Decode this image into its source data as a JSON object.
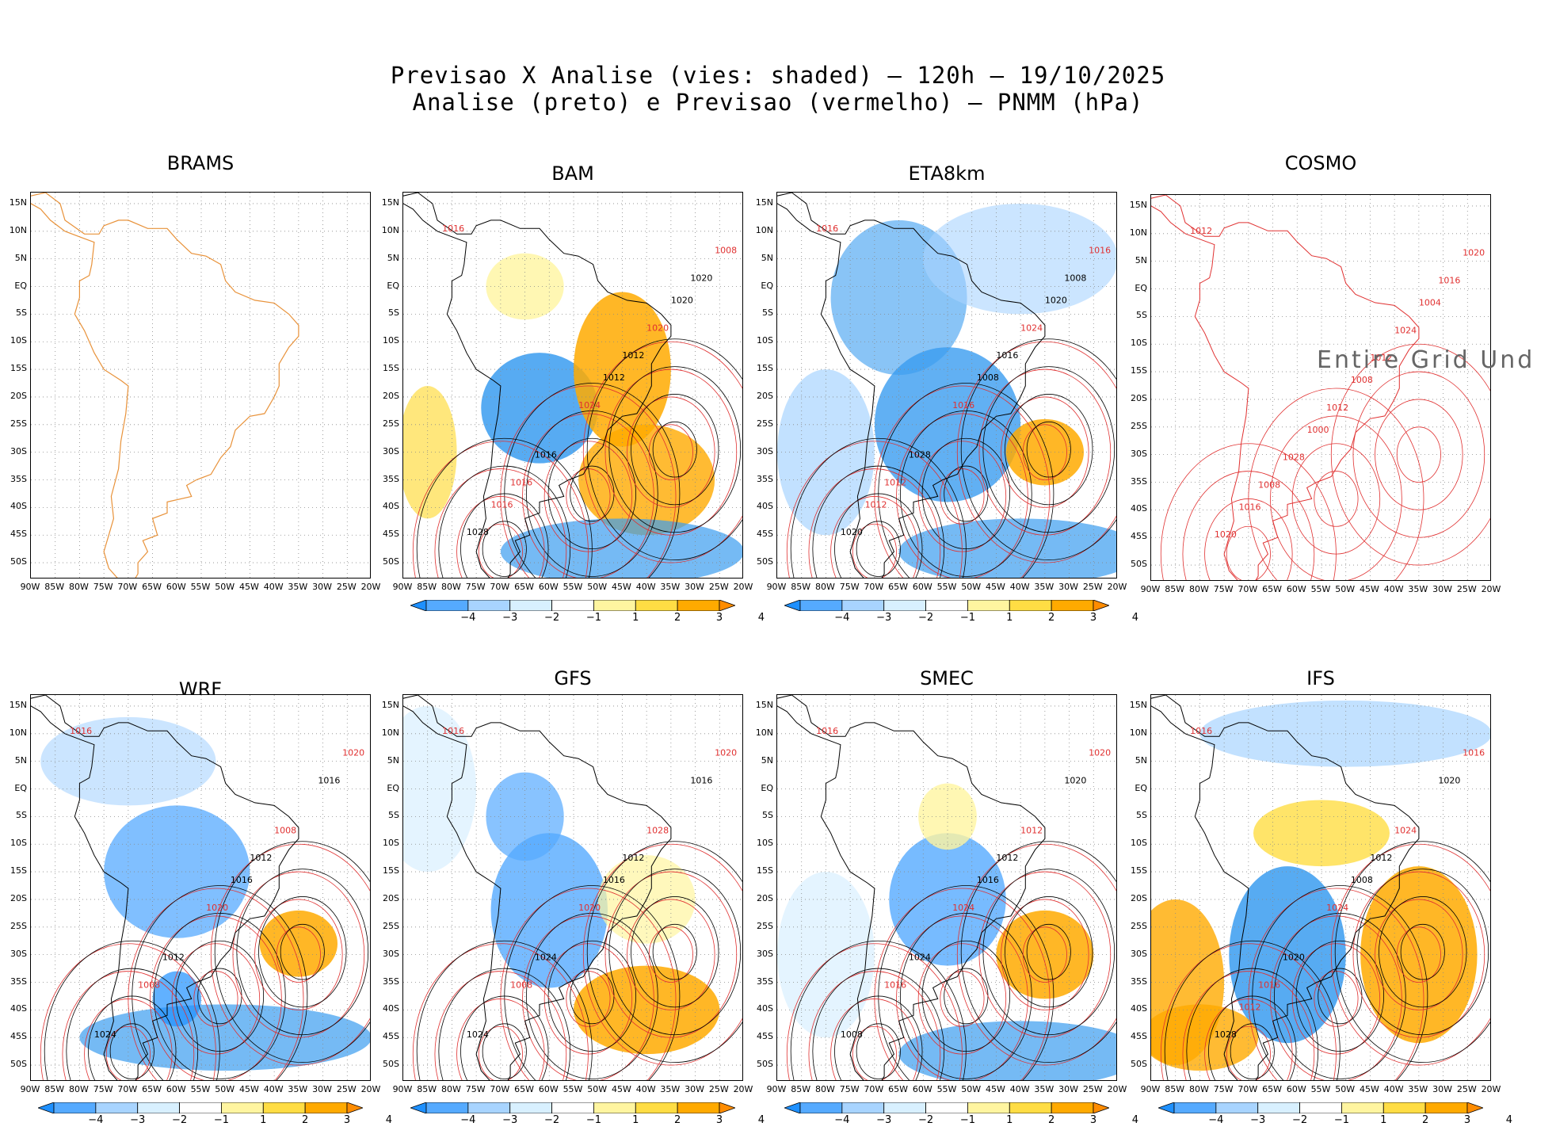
{
  "title": {
    "line1": "Previsao X Analise (vies: shaded) – 120h – 19/10/2025",
    "line2": "Analise (preto) e Previsao (vermelho) – PNMM (hPa)"
  },
  "lat_labels": [
    "15N",
    "10N",
    "5N",
    "EQ",
    "5S",
    "10S",
    "15S",
    "20S",
    "25S",
    "30S",
    "35S",
    "40S",
    "45S",
    "50S"
  ],
  "lon_labels": [
    "90W",
    "85W",
    "80W",
    "75W",
    "70W",
    "65W",
    "60W",
    "55W",
    "50W",
    "45W",
    "40W",
    "35W",
    "30W",
    "25W",
    "20W"
  ],
  "colorbar": {
    "labels": [
      "−4",
      "−3",
      "−2",
      "−1",
      "1",
      "2",
      "3",
      "4"
    ],
    "colors": [
      "#1e90ff",
      "#55aaff",
      "#a8d4ff",
      "#d8f0ff",
      "#ffffff",
      "#fff5a0",
      "#ffdd44",
      "#ffaa00",
      "#ff8c00"
    ]
  },
  "panels": [
    {
      "name": "BRAMS",
      "shaded": false,
      "outline_color": "#e8923a",
      "colorbar": false,
      "contours": []
    },
    {
      "name": "BAM",
      "shaded": true,
      "colorbar": true,
      "contours": [
        "1016",
        "1012",
        "1016",
        "1020",
        "1024",
        "1028",
        "1020",
        "1016",
        "1008",
        "1012",
        "1016",
        "1020"
      ]
    },
    {
      "name": "ETA8km",
      "shaded": true,
      "colorbar": true,
      "contours": [
        "1016",
        "1016",
        "1012",
        "1008",
        "1016",
        "1020",
        "1024",
        "1028",
        "1016",
        "1008",
        "1012",
        "1020"
      ]
    },
    {
      "name": "COSMO",
      "shaded": false,
      "colorbar": false,
      "overlay_text": "Entire Grid Und",
      "contours": [
        "1012",
        "1012",
        "1008",
        "1016",
        "1012",
        "1020",
        "1024",
        "1028",
        "1020",
        "1008",
        "1016",
        "1004",
        "1000"
      ]
    },
    {
      "name": "WRF",
      "shaded": true,
      "colorbar": true,
      "contours": [
        "1016",
        "1012",
        "1008",
        "1016",
        "1020",
        "1024",
        "1008",
        "1012",
        "1020",
        "1016"
      ]
    },
    {
      "name": "GFS",
      "shaded": true,
      "colorbar": true,
      "contours": [
        "1016",
        "1012",
        "1008",
        "1016",
        "1020",
        "1024",
        "1028",
        "1024",
        "1020",
        "1016"
      ]
    },
    {
      "name": "SMEC",
      "shaded": true,
      "colorbar": true,
      "contours": [
        "1016",
        "1012",
        "1016",
        "1020",
        "1024",
        "1008",
        "1012",
        "1024",
        "1020",
        "1016"
      ]
    },
    {
      "name": "IFS",
      "shaded": true,
      "colorbar": true,
      "contours": [
        "1016",
        "1012",
        "1016",
        "1020",
        "1024",
        "1028",
        "1024",
        "1020",
        "1016",
        "1008",
        "1012"
      ]
    }
  ]
}
